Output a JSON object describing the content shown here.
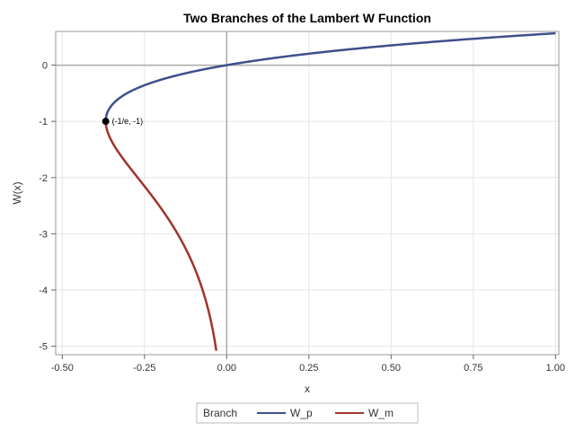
{
  "chart_data": {
    "type": "line",
    "title": "Two Branches of the Lambert W Function",
    "xlabel": "x",
    "ylabel": "W(x)",
    "xlim": [
      -0.52,
      1.01
    ],
    "ylim": [
      -5.15,
      0.6
    ],
    "xticks": [
      -0.5,
      -0.25,
      0.0,
      0.25,
      0.5,
      0.75,
      1.0
    ],
    "xtick_labels": [
      "-0.50",
      "-0.25",
      "0.00",
      "0.25",
      "0.50",
      "0.75",
      "1.00"
    ],
    "yticks": [
      0,
      -1,
      -2,
      -3,
      -4,
      -5
    ],
    "ytick_labels": [
      "0",
      "-1",
      "-2",
      "-3",
      "-4",
      "-5"
    ],
    "grid": true,
    "reference_lines": {
      "x": 0,
      "y": 0
    },
    "legend": {
      "title": "Branch",
      "position": "bottom"
    },
    "series": [
      {
        "name": "W_p",
        "color": "#3F4F8C",
        "w_range": [
          -1,
          0.5671
        ]
      },
      {
        "name": "W_m",
        "color": "#A0342A",
        "w_range": [
          -5.08,
          -1
        ]
      }
    ],
    "annotations": [
      {
        "x": -0.3679,
        "y": -1,
        "text": "(-1/e, -1)"
      }
    ]
  }
}
